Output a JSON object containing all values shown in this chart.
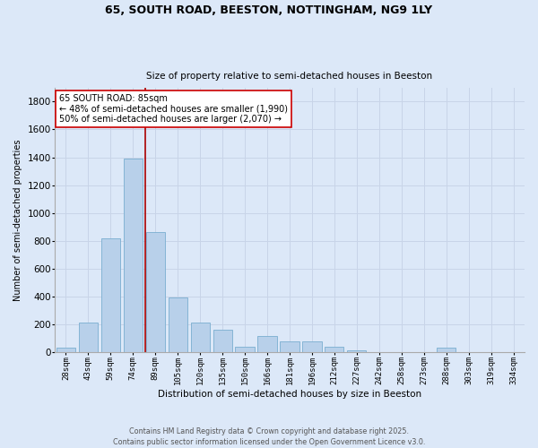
{
  "title_line1": "65, SOUTH ROAD, BEESTON, NOTTINGHAM, NG9 1LY",
  "title_line2": "Size of property relative to semi-detached houses in Beeston",
  "xlabel": "Distribution of semi-detached houses by size in Beeston",
  "ylabel": "Number of semi-detached properties",
  "categories": [
    "28sqm",
    "43sqm",
    "59sqm",
    "74sqm",
    "89sqm",
    "105sqm",
    "120sqm",
    "135sqm",
    "150sqm",
    "166sqm",
    "181sqm",
    "196sqm",
    "212sqm",
    "227sqm",
    "242sqm",
    "258sqm",
    "273sqm",
    "288sqm",
    "303sqm",
    "319sqm",
    "334sqm"
  ],
  "values": [
    30,
    210,
    820,
    1390,
    860,
    390,
    215,
    160,
    40,
    115,
    80,
    80,
    40,
    15,
    0,
    0,
    0,
    35,
    0,
    0,
    0
  ],
  "bar_color": "#b8d0ea",
  "bar_edge_color": "#7aaed0",
  "grid_color": "#c8d4e8",
  "background_color": "#dce8f8",
  "plot_bg_color": "#dce8f8",
  "vline_color": "#aa0000",
  "annotation_text": "65 SOUTH ROAD: 85sqm\n← 48% of semi-detached houses are smaller (1,990)\n50% of semi-detached houses are larger (2,070) →",
  "annotation_box_facecolor": "#ffffff",
  "annotation_box_edgecolor": "#cc0000",
  "ylim": [
    0,
    1900
  ],
  "yticks": [
    0,
    200,
    400,
    600,
    800,
    1000,
    1200,
    1400,
    1600,
    1800
  ],
  "footer_text": "Contains HM Land Registry data © Crown copyright and database right 2025.\nContains public sector information licensed under the Open Government Licence v3.0.",
  "figsize": [
    6.0,
    5.0
  ],
  "dpi": 100
}
